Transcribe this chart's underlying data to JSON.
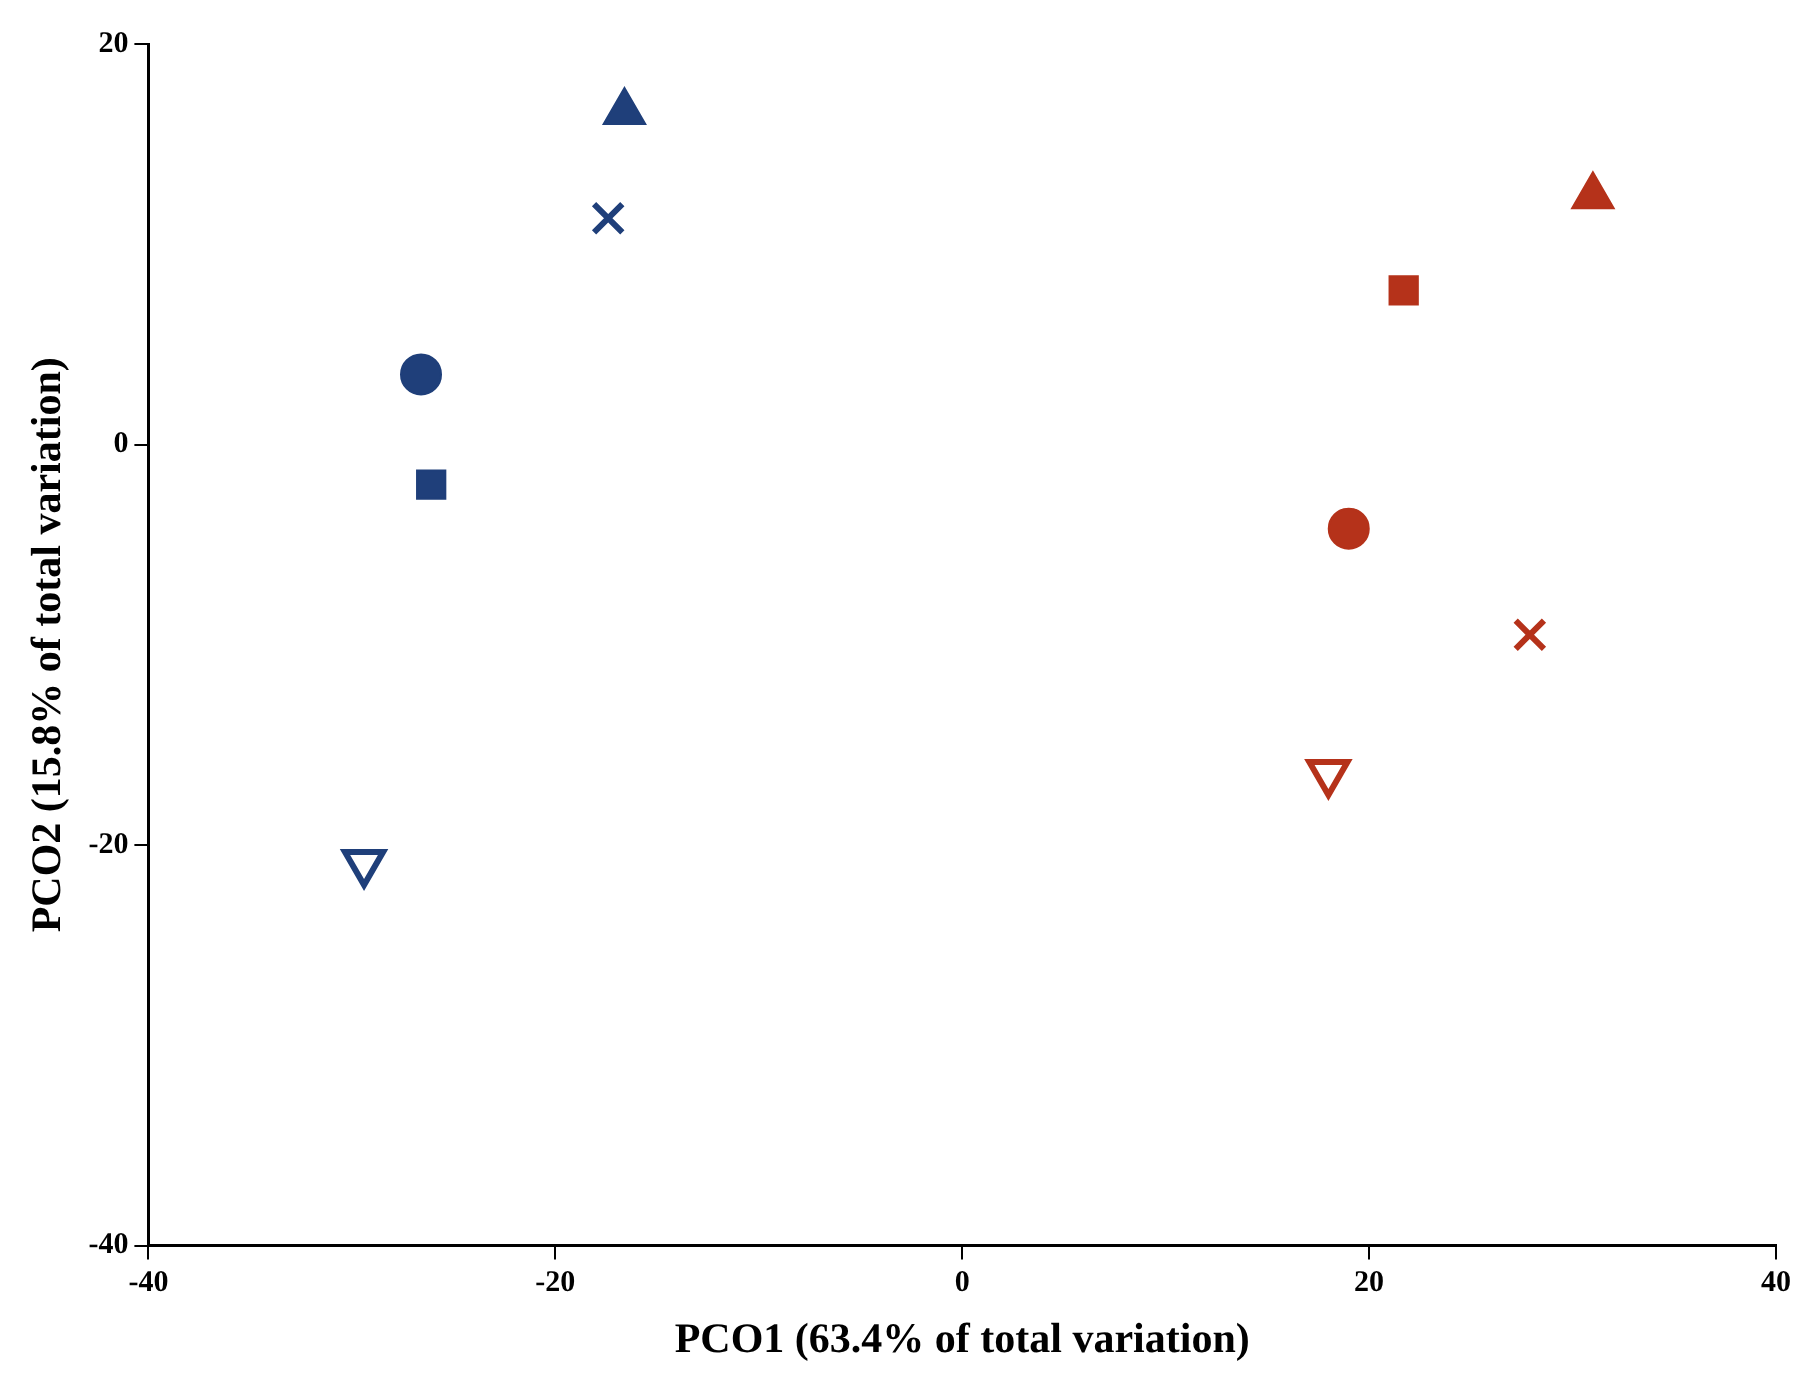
{
  "chart_data": {
    "type": "scatter",
    "xlabel": "PCO1 (63.4% of total variation)",
    "ylabel": "PCO2 (15.8% of total variation)",
    "xlim": [
      -40,
      40
    ],
    "xticks": [
      -40,
      -20,
      0,
      20,
      40
    ],
    "ylim": [
      -40,
      20
    ],
    "yticks": [
      -40,
      -20,
      0,
      20
    ],
    "grid": false,
    "legend": false,
    "series": [
      {
        "color": "#1f3f7a",
        "marker": "triangle",
        "x": [
          -16.6
        ],
        "values": [
          16.6
        ]
      },
      {
        "color": "#1f3f7a",
        "marker": "cross",
        "x": [
          -17.4
        ],
        "values": [
          11.3
        ]
      },
      {
        "color": "#1f3f7a",
        "marker": "circle",
        "x": [
          -26.6
        ],
        "values": [
          3.5
        ]
      },
      {
        "color": "#1f3f7a",
        "marker": "square",
        "x": [
          -26.1
        ],
        "values": [
          -2.0
        ]
      },
      {
        "color": "#1f3f7a",
        "marker": "triangle-down-open",
        "x": [
          -29.4
        ],
        "values": [
          -20.9
        ]
      },
      {
        "color": "#b5321a",
        "marker": "triangle",
        "x": [
          31.0
        ],
        "values": [
          12.4
        ]
      },
      {
        "color": "#b5321a",
        "marker": "square",
        "x": [
          21.7
        ],
        "values": [
          7.7
        ]
      },
      {
        "color": "#b5321a",
        "marker": "circle",
        "x": [
          19.0
        ],
        "values": [
          -4.2
        ]
      },
      {
        "color": "#b5321a",
        "marker": "cross",
        "x": [
          27.9
        ],
        "values": [
          -9.5
        ]
      },
      {
        "color": "#b5321a",
        "marker": "triangle-down-open",
        "x": [
          18.0
        ],
        "values": [
          -16.4
        ]
      }
    ]
  }
}
